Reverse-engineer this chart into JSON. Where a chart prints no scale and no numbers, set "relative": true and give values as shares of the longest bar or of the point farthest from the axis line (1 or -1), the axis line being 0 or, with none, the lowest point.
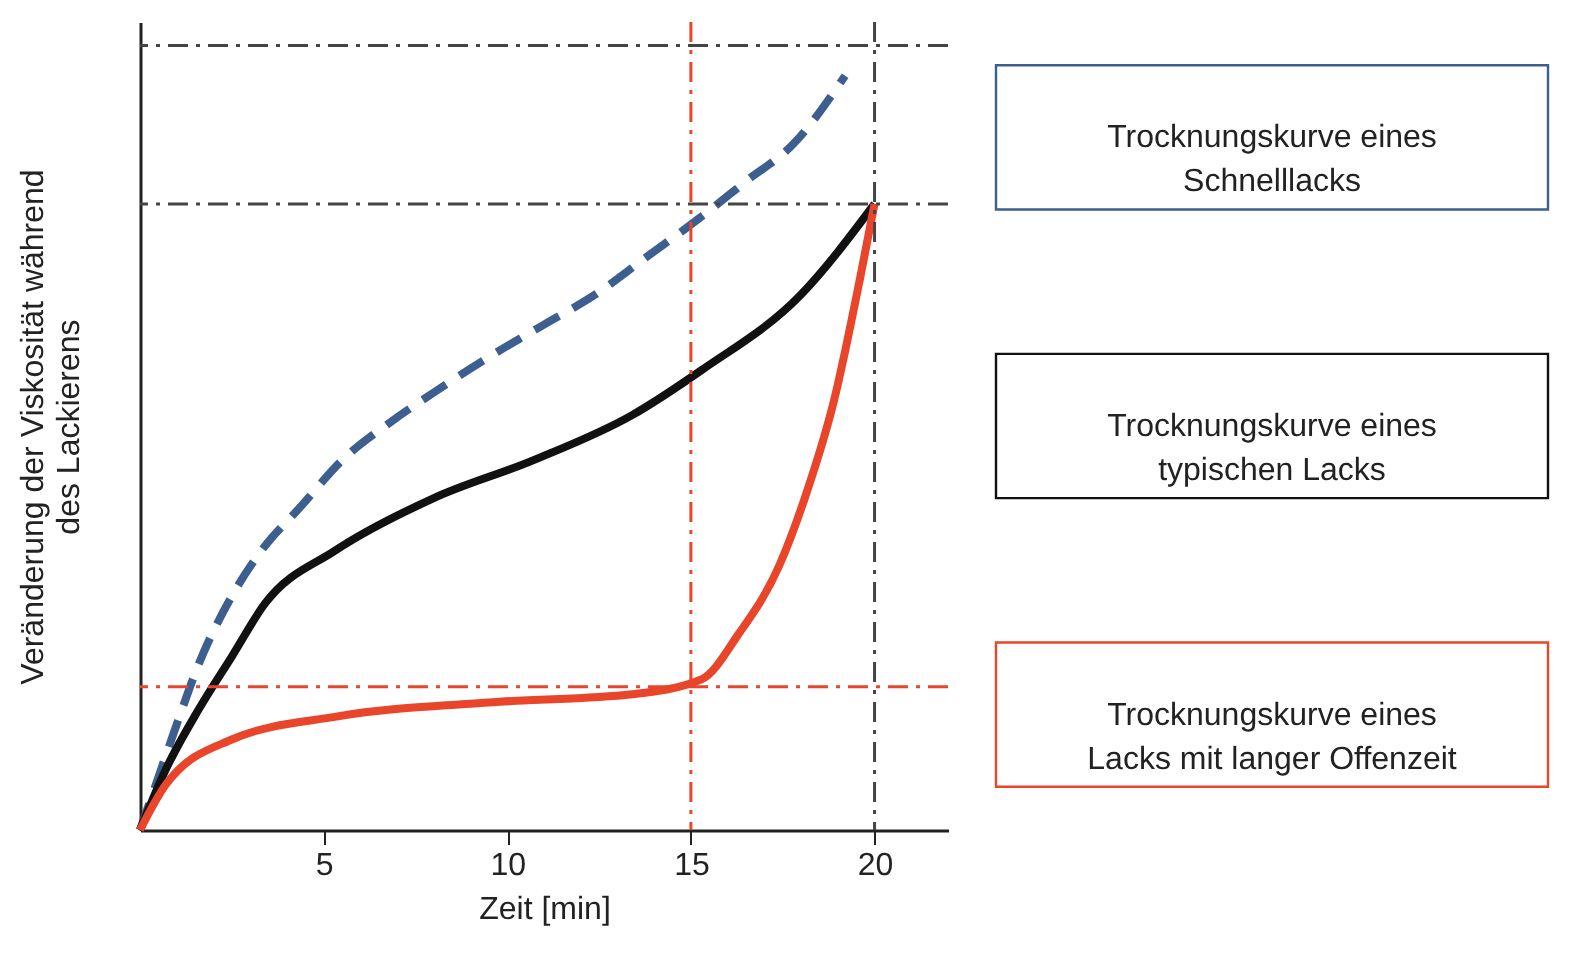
{
  "chart_data": {
    "type": "line",
    "relative": true,
    "xlabel": "Zeit [min]",
    "ylabel": "Veränderung der Viskosität während des Lackierens",
    "xlim": [
      0,
      22
    ],
    "xticks": [
      5,
      10,
      15,
      20
    ],
    "grid": false,
    "legend": "right",
    "marker": "none",
    "series": [
      {
        "name": "Trocknungskurve eines Schnelllacks",
        "color": "#3d5f8f",
        "line_style": "dashed",
        "x": [
          0,
          0.5,
          1,
          1.6,
          2.5,
          3.3,
          4.4,
          5.5,
          6.8,
          8,
          9.6,
          11,
          12.4,
          13.8,
          15.2,
          16.5,
          17.8,
          19.2
        ],
        "values": [
          0,
          0.07,
          0.14,
          0.22,
          0.31,
          0.37,
          0.43,
          0.49,
          0.54,
          0.58,
          0.63,
          0.67,
          0.71,
          0.76,
          0.81,
          0.86,
          0.91,
          1
        ]
      },
      {
        "name": "Trocknungskurve eines typischen Lacks",
        "color": "#111111",
        "line_style": "solid",
        "x": [
          0,
          0.7,
          1.6,
          2.5,
          3.4,
          5.3,
          8,
          10.7,
          13.4,
          15.3,
          18,
          20
        ],
        "values": [
          0,
          0.08,
          0.16,
          0.23,
          0.3,
          0.37,
          0.44,
          0.49,
          0.55,
          0.61,
          0.71,
          0.83
        ]
      },
      {
        "name": "Trocknungskurve eines Lacks mit langer Offenzeit",
        "color": "#e8452a",
        "line_style": "solid",
        "x": [
          0,
          0.7,
          2.5,
          5.3,
          9.8,
          13.4,
          15.3,
          16.3,
          17.4,
          18.1,
          18.9,
          19.6,
          20
        ],
        "values": [
          0,
          0.06,
          0.12,
          0.15,
          0.17,
          0.18,
          0.2,
          0.26,
          0.35,
          0.44,
          0.57,
          0.73,
          0.83
        ]
      }
    ],
    "ref_lines": [
      {
        "axis": "y",
        "value": 1.04,
        "color": "#444444",
        "line_style": "dashed"
      },
      {
        "axis": "y",
        "value": 0.83,
        "color": "#444444",
        "line_style": "dashed"
      },
      {
        "axis": "y",
        "value": 0.19,
        "color": "#e8452a",
        "line_style": "dashed"
      },
      {
        "axis": "x",
        "value": 15,
        "color": "#e8452a",
        "line_style": "dashed"
      },
      {
        "axis": "x",
        "value": 20,
        "color": "#444444",
        "line_style": "dashed"
      }
    ]
  }
}
